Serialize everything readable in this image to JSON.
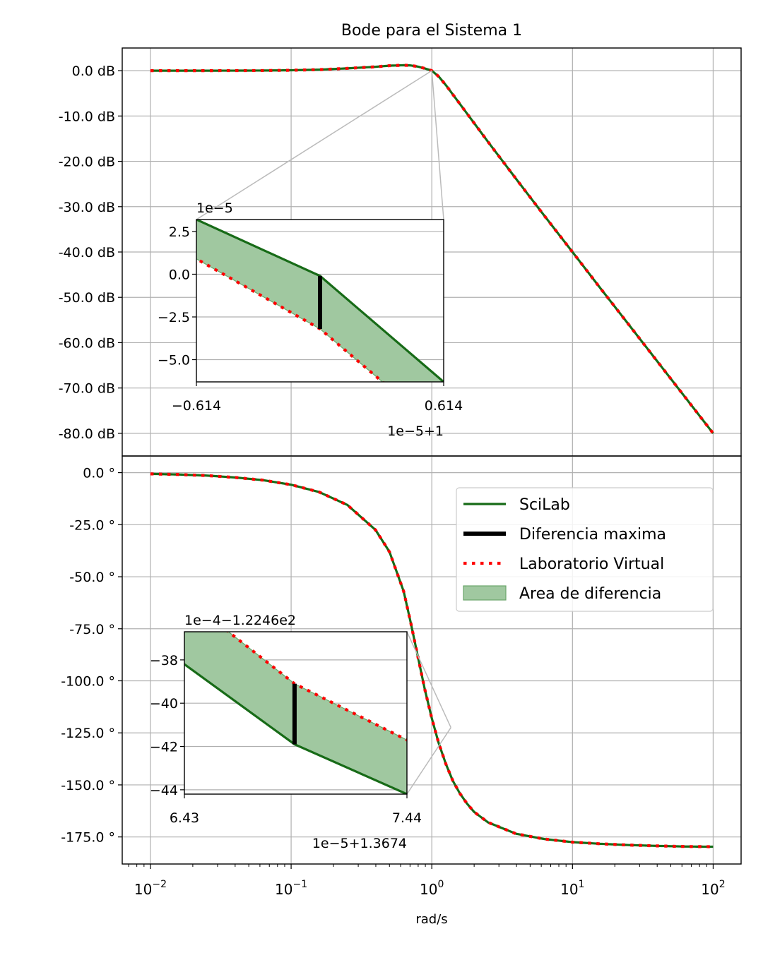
{
  "title": "Bode para el Sistema 1",
  "xlabel": "rad/s",
  "x_ticks": [
    {
      "base": "10",
      "exp": "−2"
    },
    {
      "base": "10",
      "exp": "−1"
    },
    {
      "base": "10",
      "exp": "0"
    },
    {
      "base": "10",
      "exp": "1"
    },
    {
      "base": "10",
      "exp": "2"
    }
  ],
  "colors": {
    "scilab": "#176b17",
    "virtual": "#ff0000",
    "diff": "#000000",
    "area": "#a0c8a0",
    "area_edge": "#6aa56a",
    "grid": "#b0b0b0"
  },
  "legend": {
    "placement": "upper right of phase plot",
    "items": [
      {
        "label": "SciLab",
        "type": "line"
      },
      {
        "label": "Diferencia maxima",
        "type": "thick"
      },
      {
        "label": "Laboratorio Virtual",
        "type": "dotted"
      },
      {
        "label": "Area de diferencia",
        "type": "patch"
      }
    ]
  },
  "chart_data": [
    {
      "type": "line",
      "name": "magnitude",
      "xscale": "log",
      "xlim": [
        0.0063,
        158
      ],
      "ylim": [
        -85,
        5
      ],
      "grid": true,
      "y_ticks": [
        {
          "v": 0,
          "label": "0.0 dB"
        },
        {
          "v": -10,
          "label": "-10.0 dB"
        },
        {
          "v": -20,
          "label": "-20.0 dB"
        },
        {
          "v": -30,
          "label": "-30.0 dB"
        },
        {
          "v": -40,
          "label": "-40.0 dB"
        },
        {
          "v": -50,
          "label": "-50.0 dB"
        },
        {
          "v": -60,
          "label": "-60.0 dB"
        },
        {
          "v": -70,
          "label": "-70.0 dB"
        },
        {
          "v": -80,
          "label": "-80.0 dB"
        }
      ],
      "series": [
        {
          "name": "SciLab",
          "x": [
            0.01,
            0.0158,
            0.0251,
            0.0398,
            0.0631,
            0.1,
            0.158,
            0.251,
            0.398,
            0.5,
            0.631,
            0.708,
            0.794,
            0.891,
            1.0,
            1.12,
            1.26,
            1.58,
            2.51,
            3.98,
            6.31,
            10,
            15.8,
            25.1,
            39.8,
            63.1,
            100
          ],
          "y": [
            0,
            0,
            0,
            0.01,
            0.03,
            0.09,
            0.22,
            0.51,
            0.85,
            1.1,
            1.2,
            1.15,
            0.9,
            0.5,
            0,
            -1.3,
            -3.2,
            -7.3,
            -15.7,
            -23.9,
            -32.0,
            -40.0,
            -48.0,
            -56.0,
            -64.0,
            -72.0,
            -80.0
          ]
        },
        {
          "name": "Laboratorio Virtual",
          "same_as": "SciLab"
        }
      ],
      "inset": {
        "offset_label": "1e−5+1",
        "scale_label": "1e−5",
        "xlim": [
          -0.614,
          0.614
        ],
        "ylim": [
          -6.3,
          3.2
        ],
        "x_ticks": [
          {
            "v": -0.614,
            "label": "−0.614"
          },
          {
            "v": 0.614,
            "label": "0.614"
          }
        ],
        "y_ticks": [
          {
            "v": 2.5,
            "label": "2.5"
          },
          {
            "v": 0,
            "label": "0.0"
          },
          {
            "v": -2.5,
            "label": "−2.5"
          },
          {
            "v": -5,
            "label": "−5.0"
          }
        ],
        "series": [
          {
            "name": "SciLab",
            "x": [
              -0.614,
              0.0,
              0.614
            ],
            "y": [
              3.2,
              -0.1,
              -6.3
            ]
          },
          {
            "name": "Laboratorio Virtual",
            "x": [
              -0.614,
              0.0,
              0.3
            ],
            "y": [
              0.9,
              -3.2,
              -6.2
            ]
          }
        ],
        "max_diff": {
          "x": 0.0,
          "y1": -0.1,
          "y2": -3.2
        }
      }
    },
    {
      "type": "line",
      "name": "phase",
      "xscale": "log",
      "xlim": [
        0.0063,
        158
      ],
      "ylim": [
        -188,
        8
      ],
      "grid": true,
      "y_ticks": [
        {
          "v": 0,
          "label": "0.0 °"
        },
        {
          "v": -25,
          "label": "-25.0 °"
        },
        {
          "v": -50,
          "label": "-50.0 °"
        },
        {
          "v": -75,
          "label": "-75.0 °"
        },
        {
          "v": -100,
          "label": "-100.0 °"
        },
        {
          "v": -125,
          "label": "-125.0 °"
        },
        {
          "v": -150,
          "label": "-150.0 °"
        },
        {
          "v": -175,
          "label": "-175.0 °"
        }
      ],
      "series": [
        {
          "name": "SciLab",
          "x": [
            0.01,
            0.0158,
            0.0251,
            0.0398,
            0.0631,
            0.1,
            0.158,
            0.251,
            0.398,
            0.5,
            0.631,
            0.708,
            0.794,
            0.891,
            1.0,
            1.12,
            1.26,
            1.41,
            1.58,
            1.78,
            2.0,
            2.51,
            3.98,
            6.31,
            10,
            15.8,
            25.1,
            39.8,
            63.1,
            100
          ],
          "y": [
            -0.6,
            -0.9,
            -1.4,
            -2.3,
            -3.6,
            -5.8,
            -9.3,
            -15.5,
            -27.5,
            -38,
            -57,
            -72,
            -88,
            -104,
            -118,
            -130,
            -140,
            -148,
            -154,
            -159,
            -163,
            -168,
            -173.5,
            -176,
            -177.5,
            -178.3,
            -178.9,
            -179.3,
            -179.6,
            -179.7
          ]
        },
        {
          "name": "Laboratorio Virtual",
          "same_as": "SciLab"
        }
      ],
      "inset": {
        "offset_label": "1e−5+1.3674",
        "scale_label": "1e−4−1.2246e2",
        "xlim": [
          6.43,
          7.44
        ],
        "ylim": [
          -44.2,
          -36.7
        ],
        "x_ticks": [
          {
            "v": 6.43,
            "label": "6.43"
          },
          {
            "v": 7.44,
            "label": "7.44"
          }
        ],
        "y_ticks": [
          {
            "v": -38,
            "label": "−38"
          },
          {
            "v": -40,
            "label": "−40"
          },
          {
            "v": -42,
            "label": "−42"
          },
          {
            "v": -44,
            "label": "−44"
          }
        ],
        "series": [
          {
            "name": "SciLab",
            "x": [
              6.43,
              6.93,
              7.44
            ],
            "y": [
              -38.2,
              -41.9,
              -44.2
            ]
          },
          {
            "name": "Laboratorio Virtual",
            "x": [
              6.63,
              6.93,
              7.44
            ],
            "y": [
              -36.7,
              -39.1,
              -41.7
            ]
          }
        ],
        "max_diff": {
          "x": 6.93,
          "y1": -39.1,
          "y2": -41.9
        }
      }
    }
  ]
}
